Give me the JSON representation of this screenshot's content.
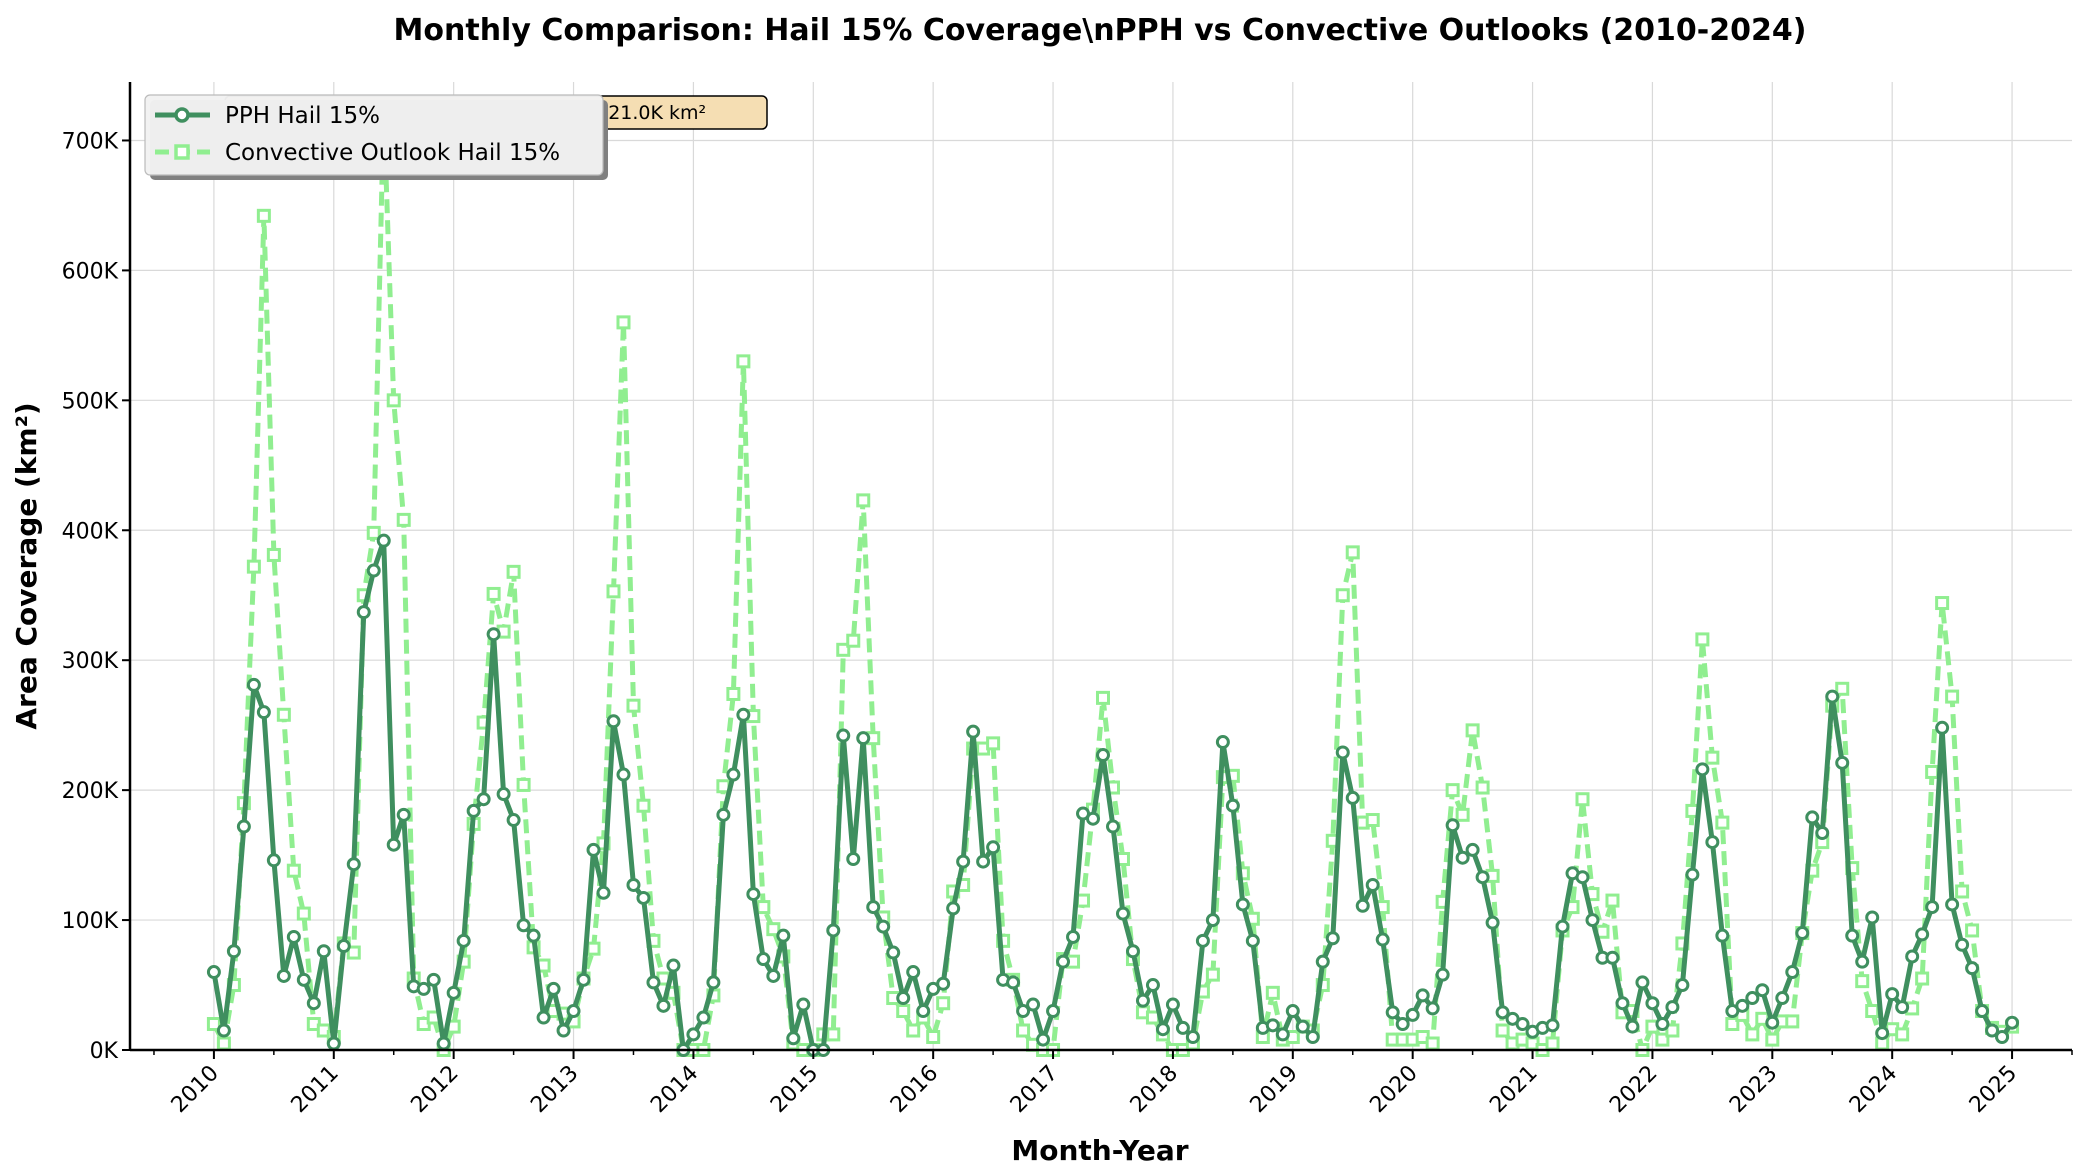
{
  "chart_data": {
    "type": "line",
    "title": "Monthly Comparison: Hail 15% Coverage\\nPPH vs Convective Outlooks (2010-2024)",
    "xlabel": "Month-Year",
    "ylabel": "Area Coverage (km²)",
    "xlim": [
      2009.3,
      2025.5
    ],
    "ylim": [
      0,
      745000
    ],
    "x_ticks": [
      2010,
      2011,
      2012,
      2013,
      2014,
      2015,
      2016,
      2017,
      2018,
      2019,
      2020,
      2021,
      2022,
      2023,
      2024,
      2025
    ],
    "x_tick_labels": [
      "2010",
      "2011",
      "2012",
      "2013",
      "2014",
      "2015",
      "2016",
      "2017",
      "2018",
      "2019",
      "2020",
      "2021",
      "2022",
      "2023",
      "2024",
      "2025"
    ],
    "y_ticks": [
      0,
      100000,
      200000,
      300000,
      400000,
      500000,
      600000,
      700000
    ],
    "y_tick_labels": [
      "0K",
      "100K",
      "200K",
      "300K",
      "400K",
      "500K",
      "600K",
      "700K"
    ],
    "grid": true,
    "legend_position": "top-left",
    "annotation": "Mean PPH: 94.9K km²\\nOutlook: 121.0K km²",
    "x_start": "2010-01",
    "x_step": "1 month",
    "series": [
      {
        "name": "PPH Hail 15%",
        "color": "#3f8f5f",
        "marker": "circle",
        "line_style": "solid",
        "values": [
          60000,
          15000,
          76000,
          172000,
          281000,
          260000,
          146000,
          57000,
          87000,
          54000,
          36000,
          76000,
          5000,
          80000,
          143000,
          337000,
          369000,
          392000,
          158000,
          181000,
          49000,
          47000,
          54000,
          5000,
          44000,
          84000,
          184000,
          193000,
          320000,
          197000,
          177000,
          96000,
          88000,
          25000,
          47000,
          15000,
          30000,
          54000,
          154000,
          121000,
          253000,
          212000,
          127000,
          117000,
          52000,
          34000,
          65000,
          0,
          12000,
          25000,
          52000,
          181000,
          212000,
          258000,
          120000,
          70000,
          57000,
          88000,
          9000,
          35000,
          0,
          0,
          92000,
          242000,
          147000,
          240000,
          110000,
          95000,
          75000,
          40000,
          60000,
          30000,
          47000,
          51000,
          109000,
          145000,
          245000,
          145000,
          156000,
          54000,
          52000,
          30000,
          35000,
          8000,
          30000,
          68000,
          87000,
          182000,
          178000,
          227000,
          172000,
          105000,
          76000,
          38000,
          50000,
          16000,
          35000,
          17000,
          10000,
          84000,
          100000,
          237000,
          188000,
          112000,
          84000,
          17000,
          19000,
          12000,
          30000,
          18000,
          10000,
          68000,
          86000,
          229000,
          194000,
          111000,
          127000,
          85000,
          29000,
          20000,
          27000,
          42000,
          32000,
          58000,
          173000,
          148000,
          154000,
          133000,
          98000,
          29000,
          24000,
          20000,
          14000,
          17000,
          19000,
          95000,
          136000,
          133000,
          100000,
          71000,
          71000,
          36000,
          18000,
          52000,
          36000,
          20000,
          33000,
          50000,
          135000,
          216000,
          160000,
          88000,
          30000,
          34000,
          40000,
          46000,
          21000,
          40000,
          60000,
          90000,
          179000,
          167000,
          272000,
          221000,
          88000,
          68000,
          102000,
          13000,
          43000,
          33000,
          72000,
          89000,
          110000,
          248000,
          112000,
          81000,
          63000,
          30000,
          15000,
          10000,
          21000
        ]
      },
      {
        "name": "Convective Outlook Hail 15%",
        "color": "#90ee90",
        "marker": "square",
        "line_style": "dashed",
        "values": [
          20000,
          5000,
          50000,
          190000,
          372000,
          642000,
          381000,
          258000,
          138000,
          105000,
          20000,
          15000,
          10000,
          82000,
          75000,
          350000,
          398000,
          725000,
          500000,
          408000,
          55000,
          20000,
          25000,
          0,
          18000,
          68000,
          174000,
          252000,
          351000,
          322000,
          368000,
          204000,
          79000,
          65000,
          30000,
          28000,
          22000,
          55000,
          78000,
          159000,
          353000,
          560000,
          265000,
          188000,
          84000,
          55000,
          44000,
          0,
          0,
          0,
          42000,
          203000,
          274000,
          530000,
          257000,
          110000,
          93000,
          72000,
          5000,
          0,
          0,
          12000,
          12000,
          308000,
          315000,
          423000,
          240000,
          102000,
          40000,
          30000,
          15000,
          25000,
          10000,
          36000,
          122000,
          127000,
          232000,
          232000,
          236000,
          84000,
          54000,
          15000,
          4000,
          0,
          0,
          70000,
          68000,
          115000,
          185000,
          271000,
          202000,
          147000,
          70000,
          29000,
          25000,
          12000,
          0,
          0,
          5000,
          45000,
          58000,
          210000,
          211000,
          136000,
          101000,
          10000,
          44000,
          8000,
          10000,
          18000,
          15000,
          50000,
          161000,
          350000,
          383000,
          175000,
          177000,
          110000,
          8000,
          8000,
          8000,
          10000,
          5000,
          114000,
          200000,
          181000,
          246000,
          202000,
          134000,
          15000,
          5000,
          8000,
          5000,
          0,
          5000,
          92000,
          110000,
          193000,
          120000,
          91000,
          115000,
          29000,
          30000,
          0,
          18000,
          8000,
          15000,
          82000,
          184000,
          316000,
          225000,
          175000,
          20000,
          27000,
          12000,
          24000,
          8000,
          22000,
          22000,
          90000,
          138000,
          160000,
          265000,
          278000,
          140000,
          53000,
          30000,
          5000,
          16000,
          12000,
          32000,
          55000,
          214000,
          344000,
          272000,
          122000,
          92000,
          30000,
          17000,
          14000,
          18000
        ]
      }
    ]
  }
}
